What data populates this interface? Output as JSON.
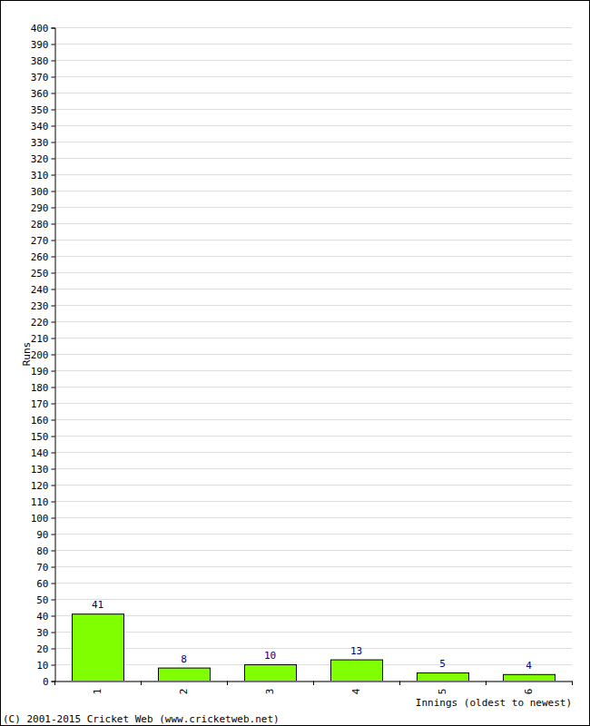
{
  "chart_data": {
    "type": "bar",
    "categories": [
      "1",
      "2",
      "3",
      "4",
      "5",
      "6"
    ],
    "values": [
      41,
      8,
      10,
      13,
      5,
      4
    ],
    "color": "#80ff00",
    "ylim": [
      0,
      400
    ],
    "yticks": [
      0,
      10,
      20,
      30,
      40,
      50,
      60,
      70,
      80,
      90,
      100,
      110,
      120,
      130,
      140,
      150,
      160,
      170,
      180,
      190,
      200,
      210,
      220,
      230,
      240,
      250,
      260,
      270,
      280,
      290,
      300,
      310,
      320,
      330,
      340,
      350,
      360,
      370,
      380,
      390,
      400
    ],
    "grid": true,
    "data_labels": true,
    "x_label": "Innings (oldest to newest)",
    "y_label": "Runs",
    "annotations": [
      "(C) 2001-2015 Cricket Web (www.cricketweb.net)"
    ]
  }
}
